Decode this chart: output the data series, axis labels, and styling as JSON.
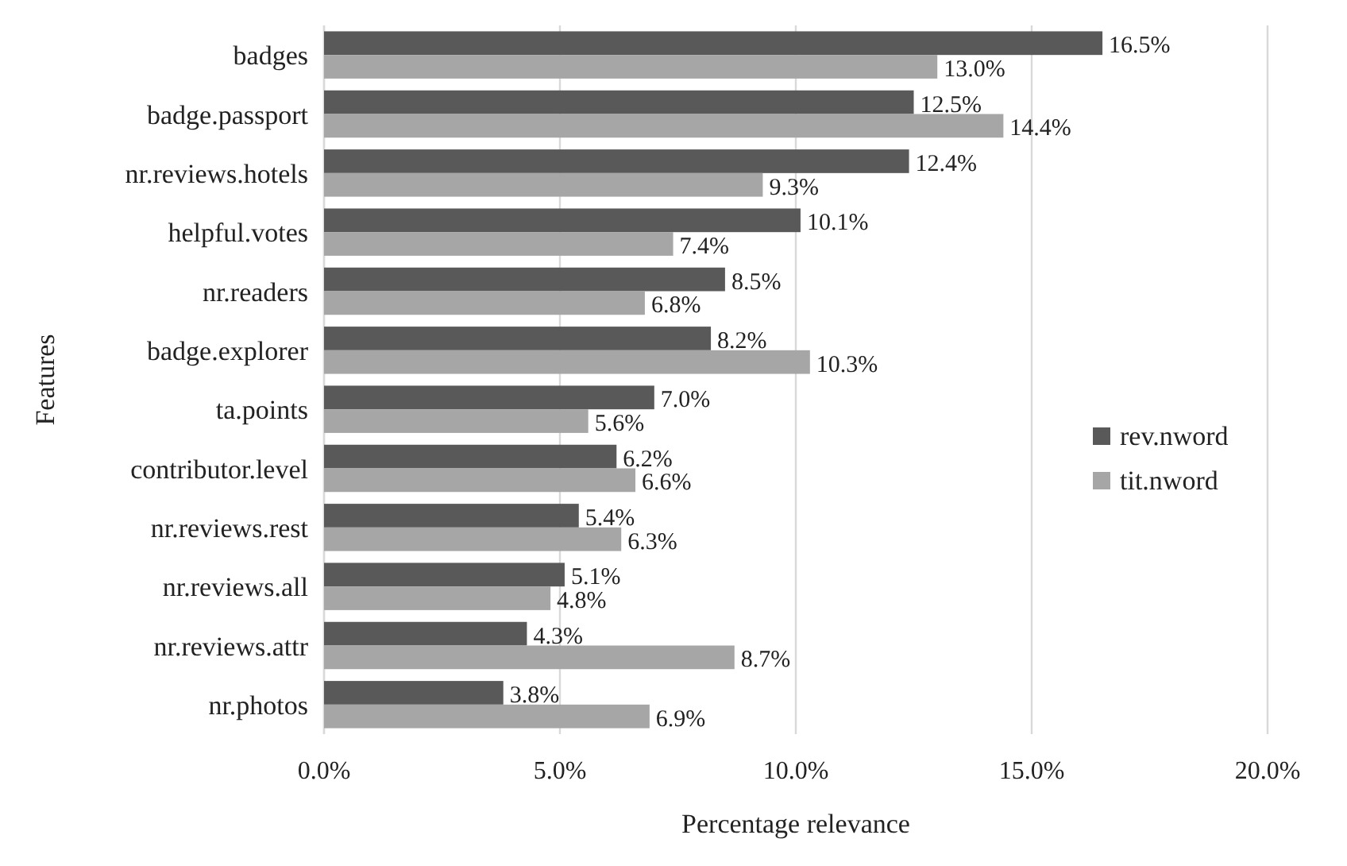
{
  "chart_data": {
    "type": "bar",
    "orientation": "horizontal",
    "xlabel": "Percentage relevance",
    "ylabel": "Features",
    "categories": [
      "badges",
      "badge.passport",
      "nr.reviews.hotels",
      "helpful.votes",
      "nr.readers",
      "badge.explorer",
      "ta.points",
      "contributor.level",
      "nr.reviews.rest",
      "nr.reviews.all",
      "nr.reviews.attr",
      "nr.photos"
    ],
    "series": [
      {
        "name": "rev.nword",
        "color": "#595959",
        "values": [
          16.5,
          12.5,
          12.4,
          10.1,
          8.5,
          8.2,
          7.0,
          6.2,
          5.4,
          5.1,
          4.3,
          3.8
        ],
        "value_labels": [
          "16.5%",
          "12.5%",
          "12.4%",
          "10.1%",
          "8.5%",
          "8.2%",
          "7.0%",
          "6.2%",
          "5.4%",
          "5.1%",
          "4.3%",
          "3.8%"
        ]
      },
      {
        "name": "tit.nword",
        "color": "#a6a6a6",
        "values": [
          13.0,
          14.4,
          9.3,
          7.4,
          6.8,
          10.3,
          5.6,
          6.6,
          6.3,
          4.8,
          8.7,
          6.9
        ],
        "value_labels": [
          "13.0%",
          "14.4%",
          "9.3%",
          "7.4%",
          "6.8%",
          "10.3%",
          "5.6%",
          "6.6%",
          "6.3%",
          "4.8%",
          "8.7%",
          "6.9%"
        ]
      }
    ],
    "xlim": [
      0,
      20
    ],
    "xticks": [
      {
        "value": 0,
        "label": "0.0%"
      },
      {
        "value": 5,
        "label": "5.0%"
      },
      {
        "value": 10,
        "label": "10.0%"
      },
      {
        "value": 15,
        "label": "15.0%"
      },
      {
        "value": 20,
        "label": "20.0%"
      }
    ],
    "grid": "x",
    "legend": "right"
  }
}
